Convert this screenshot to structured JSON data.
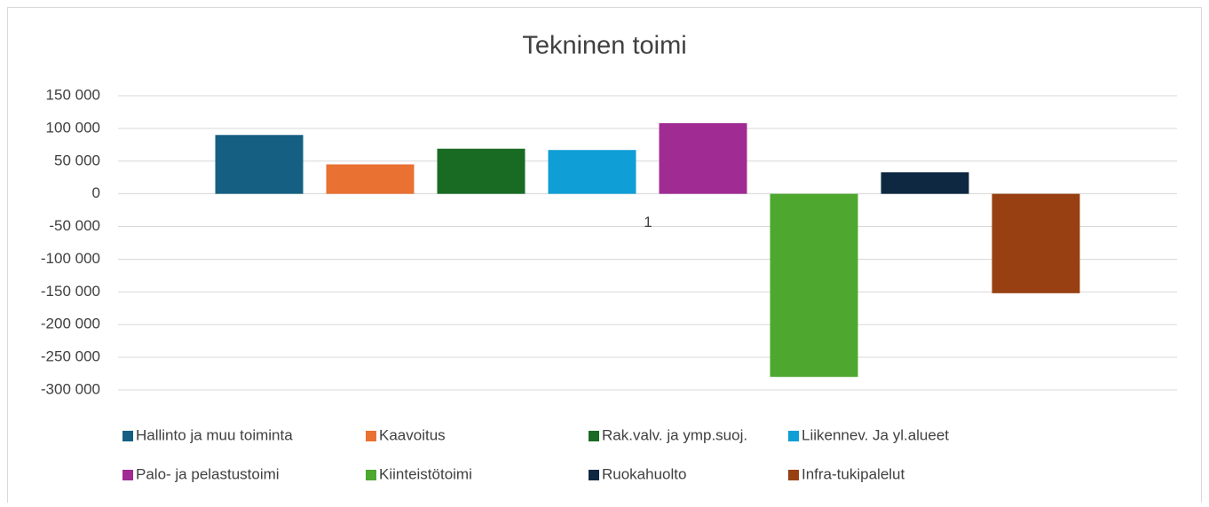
{
  "chart_data": {
    "type": "bar",
    "title": "Tekninen toimi",
    "categories": [
      "1"
    ],
    "series": [
      {
        "name": "Hallinto ja muu toiminta",
        "color": "#156082",
        "values": [
          90000
        ]
      },
      {
        "name": "Kaavoitus",
        "color": "#e97132",
        "values": [
          45000
        ]
      },
      {
        "name": "Rak.valv. ja ymp.suoj.",
        "color": "#196b24",
        "values": [
          69000
        ]
      },
      {
        "name": "Liikennev. Ja yl.alueet",
        "color": "#0f9ed5",
        "values": [
          67000
        ]
      },
      {
        "name": "Palo- ja pelastustoimi",
        "color": "#a02b93",
        "values": [
          108000
        ]
      },
      {
        "name": "Kiinteistötoimi",
        "color": "#4ea72e",
        "values": [
          -280000
        ]
      },
      {
        "name": "Ruokahuolto",
        "color": "#0e2841",
        "values": [
          33000
        ]
      },
      {
        "name": "Infra-tukipalelut",
        "color": "#984012",
        "values": [
          -152000
        ]
      }
    ],
    "ylim": [
      -300000,
      150000
    ],
    "yticks": [
      {
        "value": -300000,
        "label": "-300 000"
      },
      {
        "value": -250000,
        "label": "-250 000"
      },
      {
        "value": -200000,
        "label": "-200 000"
      },
      {
        "value": -150000,
        "label": "-150 000"
      },
      {
        "value": -100000,
        "label": "-100 000"
      },
      {
        "value": -50000,
        "label": "-50 000"
      },
      0,
      {
        "value": 50000,
        "label": "50 000"
      },
      {
        "value": 100000,
        "label": "100 000"
      },
      {
        "value": 150000,
        "label": "150 000"
      }
    ],
    "grid": true,
    "legend": "bottom"
  }
}
